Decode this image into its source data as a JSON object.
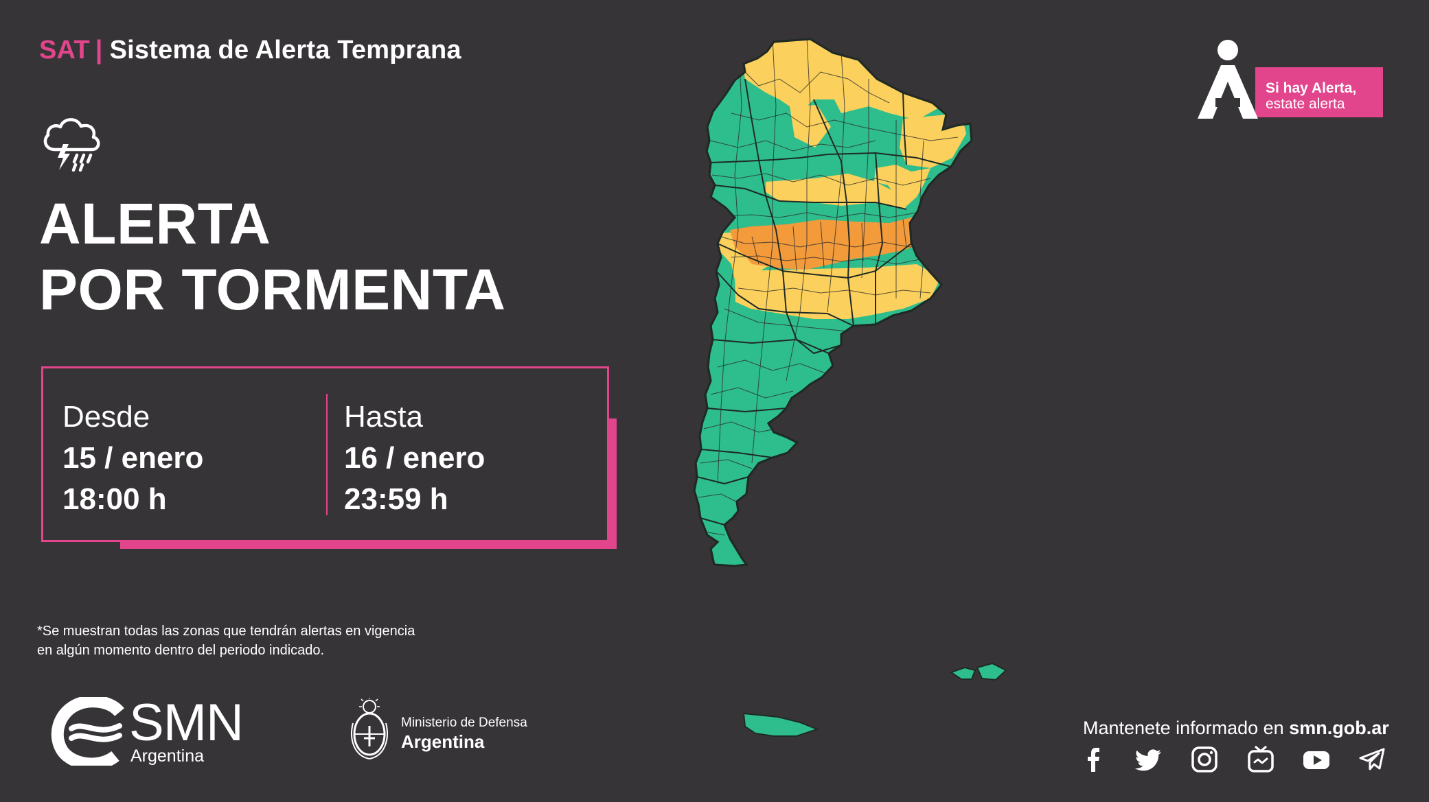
{
  "header": {
    "prefix": "SAT",
    "divider": "|",
    "title": "Sistema de Alerta Temprana"
  },
  "icons": {
    "storm": "storm-cloud-icon",
    "alert_person": "alert-person-icon"
  },
  "alert": {
    "title_line1": "ALERTA",
    "title_line2": "POR TORMENTA"
  },
  "period": {
    "from_label": "Desde",
    "from_date": "15 / enero",
    "from_time": "18:00 h",
    "to_label": "Hasta",
    "to_date": "16 / enero",
    "to_time": "23:59 h"
  },
  "footnote": "*Se muestran todas las zonas que tendrán alertas en vigencia en algún momento dentro del periodo indicado.",
  "smn": {
    "name": "SMN",
    "sub": "Argentina"
  },
  "ministry": {
    "line1": "Ministerio de Defensa",
    "line2": "Argentina"
  },
  "badge": {
    "line1": "Si hay Alerta,",
    "line2": "estate alerta"
  },
  "stay_informed": {
    "text": "Mantenete informado en ",
    "site": "smn.gob.ar"
  },
  "social": [
    "facebook-icon",
    "twitter-icon",
    "instagram-icon",
    "tv-icon",
    "youtube-icon",
    "telegram-icon"
  ],
  "colors": {
    "background": "#373438",
    "accent": "#e2458c",
    "no_alert": "#2ebd8c",
    "yellow_alert": "#fbd05c",
    "orange_alert": "#f39a3b"
  }
}
